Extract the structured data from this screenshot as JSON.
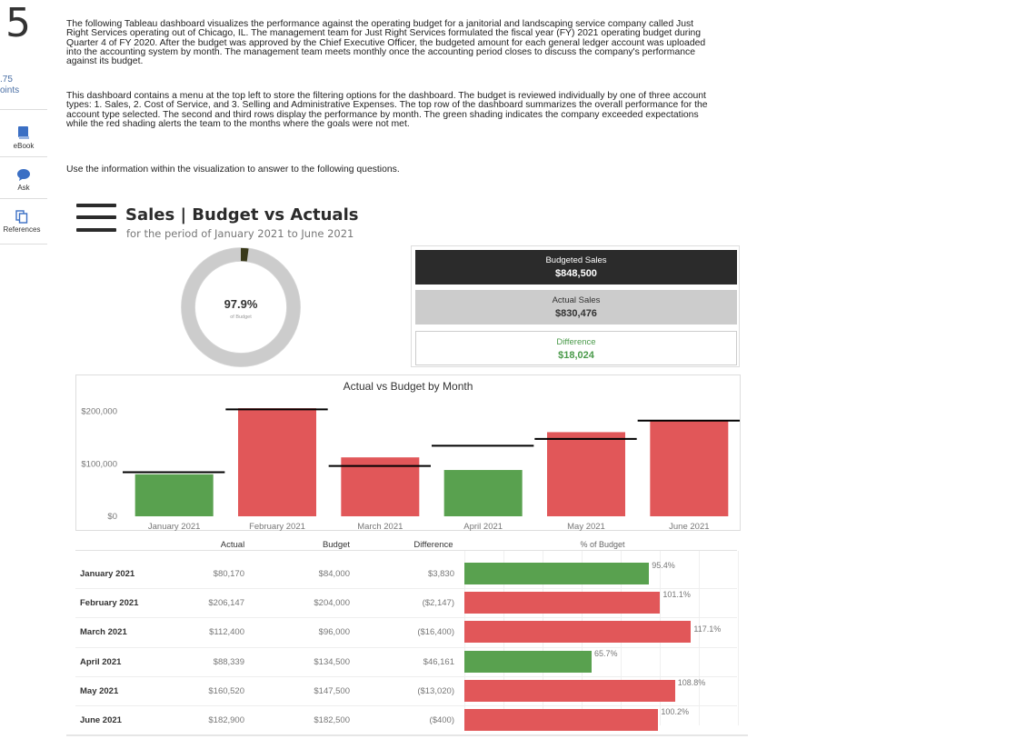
{
  "question": {
    "number": "5",
    "points_value": ".75",
    "points_label": "oints"
  },
  "rail": [
    {
      "icon": "book-icon",
      "label": "eBook"
    },
    {
      "icon": "chat-bubble-icon",
      "label": "Ask"
    },
    {
      "icon": "copy-icon",
      "label": "References"
    }
  ],
  "paragraphs": [
    "The following Tableau dashboard visualizes the performance against the operating budget for a janitorial and landscaping service company called Just Right Services operating out of Chicago, IL. The management team for Just Right Services formulated the fiscal year (FY) 2021 operating budget during Quarter 4 of FY 2020. After the budget was approved by the Chief Executive Officer, the budgeted amount for each general ledger account was uploaded into the accounting system by month. The management team meets monthly once the accounting period closes to discuss the company's performance against its budget.",
    "This dashboard contains a menu at the top left to store the filtering options for the dashboard. The budget is reviewed individually by one of three account types: 1. Sales, 2. Cost of Service, and 3. Selling and Administrative Expenses. The top row of the dashboard summarizes the overall performance for the account type selected. The second and third rows display the performance by month. The green shading indicates the company exceeded expectations while the red shading alerts the team to the months where the goals were not met.",
    "Use the information within the visualization to answer to the following questions."
  ],
  "dashboard": {
    "title": "Sales | Budget vs Actuals",
    "subtitle": "for the period of  January 2021 to June 2021",
    "donut": {
      "value": "97.9%",
      "caption": "of Budget",
      "fraction": 0.979,
      "ring_color": "#cccccc",
      "gap_color": "#3a3a1a"
    },
    "kpis": [
      {
        "label": "Budgeted Sales",
        "value": "$848,500",
        "bg": "#2b2b2b",
        "fg": "#ffffff"
      },
      {
        "label": "Actual Sales",
        "value": "$830,476",
        "bg": "#cccccc",
        "fg": "#333333"
      },
      {
        "label": "Difference",
        "value": "$18,024",
        "bg": "#ffffff",
        "fg": "#4a9a4a"
      }
    ]
  },
  "chart_data": [
    {
      "type": "bar",
      "title": "Actual vs Budget by Month",
      "categories": [
        "January 2021",
        "February 2021",
        "March 2021",
        "April 2021",
        "May 2021",
        "June 2021"
      ],
      "series": [
        {
          "name": "Actual",
          "values": [
            80170,
            206147,
            112400,
            88339,
            160520,
            182900
          ],
          "colors": [
            "#59a14f",
            "#e15759",
            "#e15759",
            "#59a14f",
            "#e15759",
            "#e15759"
          ]
        },
        {
          "name": "Budget",
          "values": [
            84000,
            204000,
            96000,
            134500,
            147500,
            182500
          ],
          "color": "#000000"
        }
      ],
      "yticks": [
        "$200,000",
        "$100,000",
        "$0"
      ],
      "ytick_values": [
        200000,
        100000,
        0
      ],
      "ylim": [
        0,
        215000
      ],
      "grid": false
    },
    {
      "type": "table",
      "columns": [
        "Actual",
        "Budget",
        "Difference",
        "% of Budget"
      ],
      "rows": [
        {
          "month": "January 2021",
          "actual": "$80,170",
          "budget": "$84,000",
          "difference": "$3,830",
          "pct": "95.4%",
          "pct_value": 95.4,
          "color": "#59a14f"
        },
        {
          "month": "February 2021",
          "actual": "$206,147",
          "budget": "$204,000",
          "difference": "($2,147)",
          "pct": "101.1%",
          "pct_value": 101.1,
          "color": "#e15759"
        },
        {
          "month": "March 2021",
          "actual": "$112,400",
          "budget": "$96,000",
          "difference": "($16,400)",
          "pct": "117.1%",
          "pct_value": 117.1,
          "color": "#e15759"
        },
        {
          "month": "April 2021",
          "actual": "$88,339",
          "budget": "$134,500",
          "difference": "$46,161",
          "pct": "65.7%",
          "pct_value": 65.7,
          "color": "#59a14f"
        },
        {
          "month": "May 2021",
          "actual": "$160,520",
          "budget": "$147,500",
          "difference": "($13,020)",
          "pct": "108.8%",
          "pct_value": 108.8,
          "color": "#e15759"
        },
        {
          "month": "June 2021",
          "actual": "$182,900",
          "budget": "$182,500",
          "difference": "($400)",
          "pct": "100.2%",
          "pct_value": 100.2,
          "color": "#e15759"
        }
      ]
    }
  ]
}
